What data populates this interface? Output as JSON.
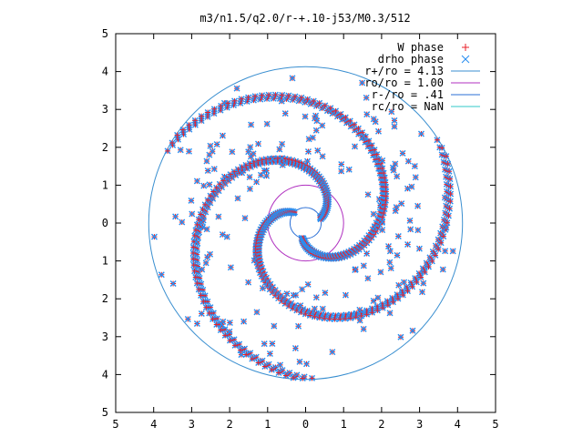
{
  "chart_data": {
    "type": "scatter",
    "title": "m3/n1.5/q2.0/r-+.10-j53/M0.3/512",
    "xlabel": "",
    "ylabel": "",
    "xlim": [
      -5,
      5
    ],
    "ylim": [
      -5,
      5
    ],
    "x_tick_labels": [
      "5",
      "4",
      "3",
      "2",
      "1",
      "0",
      "1",
      "2",
      "3",
      "4",
      "5"
    ],
    "y_tick_labels": [
      "5",
      "4",
      "3",
      "2",
      "1",
      "0",
      "1",
      "2",
      "3",
      "4",
      "5"
    ],
    "grid": false,
    "legend_position": "top-right",
    "series": [
      {
        "name": "W phase",
        "marker": "plus",
        "color": "#e8202a"
      },
      {
        "name": "drho phase",
        "marker": "cross",
        "color": "#2a8ef0"
      }
    ],
    "circles": [
      {
        "name": "r+/ro = 4.13",
        "radius": 4.13,
        "color": "#3a8fd0"
      },
      {
        "name": "ro/ro = 1.00",
        "radius": 1.0,
        "color": "#b030c0"
      },
      {
        "name": "r-/ro = .41",
        "radius": 0.41,
        "color": "#2a6fd6"
      },
      {
        "name": "rc/ro = NaN",
        "radius": null,
        "color": "#30c8c8"
      }
    ],
    "spiral_arms": [
      {
        "r_start": 0.41,
        "r_end": 4.1,
        "theta_start_deg": 18,
        "pitch_deg_per_r": 68
      },
      {
        "r_start": 0.41,
        "r_end": 4.1,
        "theta_start_deg": 138,
        "pitch_deg_per_r": 68
      },
      {
        "r_start": 0.41,
        "r_end": 4.1,
        "theta_start_deg": 258,
        "pitch_deg_per_r": 68
      }
    ],
    "arm_point_count": 90,
    "scatter_point_count": 180
  }
}
